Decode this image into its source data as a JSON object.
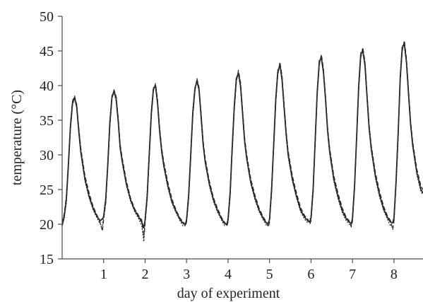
{
  "chart_data": {
    "type": "line",
    "title": "",
    "xlabel": "day of experiment",
    "ylabel": "temperature (°C)",
    "xlim": [
      0,
      8.7
    ],
    "ylim": [
      15,
      50
    ],
    "x_ticks": [
      1,
      2,
      3,
      4,
      5,
      6,
      7,
      8
    ],
    "y_ticks": [
      15,
      20,
      25,
      30,
      35,
      40,
      45,
      50
    ],
    "grid": false,
    "line_color": "#2a2a2a",
    "series": [
      {
        "style": "solid",
        "x": [
          0.0,
          0.05,
          0.1,
          0.15,
          0.2,
          0.25,
          0.3,
          0.35,
          0.4,
          0.45,
          0.55,
          0.65,
          0.75,
          0.85,
          0.92,
          0.97,
          1.0,
          1.05,
          1.1,
          1.15,
          1.2,
          1.25,
          1.3,
          1.35,
          1.4,
          1.45,
          1.55,
          1.65,
          1.75,
          1.85,
          1.92,
          1.97,
          2.0,
          2.05,
          2.1,
          2.15,
          2.2,
          2.25,
          2.3,
          2.35,
          2.4,
          2.45,
          2.55,
          2.65,
          2.75,
          2.85,
          2.92,
          2.97,
          3.0,
          3.05,
          3.1,
          3.15,
          3.2,
          3.25,
          3.3,
          3.35,
          3.4,
          3.45,
          3.55,
          3.65,
          3.75,
          3.85,
          3.92,
          3.97,
          4.0,
          4.05,
          4.1,
          4.15,
          4.2,
          4.25,
          4.3,
          4.35,
          4.4,
          4.45,
          4.55,
          4.65,
          4.75,
          4.85,
          4.92,
          4.97,
          5.0,
          5.05,
          5.1,
          5.15,
          5.2,
          5.25,
          5.3,
          5.35,
          5.4,
          5.45,
          5.55,
          5.65,
          5.75,
          5.85,
          5.92,
          5.97,
          6.0,
          6.05,
          6.1,
          6.15,
          6.2,
          6.25,
          6.3,
          6.35,
          6.4,
          6.45,
          6.55,
          6.65,
          6.75,
          6.85,
          6.92,
          6.97,
          7.0,
          7.05,
          7.1,
          7.15,
          7.2,
          7.25,
          7.3,
          7.35,
          7.4,
          7.45,
          7.55,
          7.65,
          7.75,
          7.85,
          7.92,
          7.97,
          8.0,
          8.05,
          8.1,
          8.15,
          8.2,
          8.25,
          8.3,
          8.35,
          8.4,
          8.45,
          8.55,
          8.65,
          8.7
        ],
        "y": [
          19.8,
          21.0,
          23.5,
          28.5,
          34.0,
          37.5,
          38.3,
          37.0,
          33.5,
          30.5,
          26.5,
          24.0,
          22.2,
          21.0,
          20.5,
          20.8,
          21.0,
          23.5,
          28.5,
          34.5,
          38.3,
          39.2,
          38.2,
          35.0,
          31.0,
          29.0,
          25.8,
          23.5,
          22.0,
          21.0,
          20.3,
          19.5,
          20.6,
          24.0,
          30.0,
          36.0,
          39.5,
          40.0,
          37.5,
          33.5,
          30.5,
          28.5,
          25.5,
          23.2,
          21.8,
          20.6,
          20.1,
          20.0,
          20.6,
          24.0,
          30.0,
          36.0,
          39.5,
          40.7,
          39.5,
          35.5,
          31.5,
          29.0,
          25.8,
          23.5,
          21.9,
          20.7,
          20.1,
          20.0,
          20.6,
          24.5,
          31.0,
          37.0,
          41.0,
          41.8,
          40.0,
          36.0,
          32.0,
          29.5,
          26.0,
          23.8,
          22.0,
          20.8,
          20.2,
          20.1,
          20.7,
          25.0,
          31.5,
          38.0,
          42.0,
          43.0,
          41.0,
          37.0,
          33.0,
          30.0,
          26.5,
          24.0,
          22.0,
          21.0,
          20.5,
          20.3,
          20.9,
          25.0,
          32.0,
          39.0,
          43.5,
          44.0,
          42.0,
          38.0,
          33.5,
          30.5,
          26.5,
          24.0,
          22.0,
          20.8,
          20.3,
          20.1,
          20.8,
          25.5,
          32.5,
          40.0,
          44.5,
          45.0,
          43.0,
          38.5,
          34.0,
          31.0,
          27.0,
          24.3,
          22.2,
          20.9,
          20.3,
          20.2,
          20.8,
          26.0,
          33.0,
          41.0,
          45.5,
          46.0,
          43.5,
          39.0,
          34.5,
          31.5,
          27.5,
          25.0,
          24.5
        ]
      },
      {
        "style": "dashed",
        "x": [
          0.0,
          0.05,
          0.1,
          0.15,
          0.2,
          0.25,
          0.3,
          0.35,
          0.4,
          0.45,
          0.55,
          0.65,
          0.75,
          0.85,
          0.92,
          0.97,
          1.0,
          1.05,
          1.1,
          1.15,
          1.2,
          1.25,
          1.3,
          1.35,
          1.4,
          1.45,
          1.55,
          1.65,
          1.75,
          1.85,
          1.92,
          1.97,
          2.0,
          2.05,
          2.1,
          2.15,
          2.2,
          2.25,
          2.3,
          2.35,
          2.4,
          2.45,
          2.55,
          2.65,
          2.75,
          2.85,
          2.92,
          2.97,
          3.0,
          3.05,
          3.1,
          3.15,
          3.2,
          3.25,
          3.3,
          3.35,
          3.4,
          3.45,
          3.55,
          3.65,
          3.75,
          3.85,
          3.92,
          3.97,
          4.0,
          4.05,
          4.1,
          4.15,
          4.2,
          4.25,
          4.3,
          4.35,
          4.4,
          4.45,
          4.55,
          4.65,
          4.75,
          4.85,
          4.92,
          4.97,
          5.0,
          5.05,
          5.1,
          5.15,
          5.2,
          5.25,
          5.3,
          5.35,
          5.4,
          5.45,
          5.55,
          5.65,
          5.75,
          5.85,
          5.92,
          5.97,
          6.0,
          6.05,
          6.1,
          6.15,
          6.2,
          6.25,
          6.3,
          6.35,
          6.4,
          6.45,
          6.55,
          6.65,
          6.75,
          6.85,
          6.92,
          6.97,
          7.0,
          7.05,
          7.1,
          7.15,
          7.2,
          7.25,
          7.3,
          7.35,
          7.4,
          7.45,
          7.55,
          7.65,
          7.75,
          7.85,
          7.92,
          7.97,
          8.0,
          8.05,
          8.1,
          8.15,
          8.2,
          8.25,
          8.3,
          8.35,
          8.4,
          8.45,
          8.55,
          8.65,
          8.7
        ],
        "y": [
          20.2,
          21.5,
          24.0,
          29.0,
          34.5,
          37.8,
          38.5,
          37.3,
          34.0,
          31.0,
          27.0,
          24.5,
          22.5,
          21.2,
          20.2,
          19.0,
          20.6,
          23.0,
          28.0,
          34.0,
          38.0,
          39.4,
          38.5,
          35.5,
          31.5,
          29.5,
          26.2,
          23.8,
          22.2,
          21.2,
          20.6,
          18.0,
          20.2,
          23.5,
          29.5,
          35.5,
          39.2,
          40.3,
          38.0,
          34.0,
          31.0,
          29.0,
          26.0,
          23.6,
          22.0,
          20.8,
          20.4,
          19.7,
          20.3,
          23.5,
          29.5,
          35.5,
          39.2,
          41.0,
          39.8,
          36.0,
          32.0,
          29.5,
          26.2,
          23.8,
          22.2,
          20.9,
          20.3,
          19.7,
          20.3,
          24.0,
          30.5,
          36.5,
          40.5,
          42.2,
          40.5,
          36.5,
          32.5,
          30.0,
          26.5,
          24.2,
          22.3,
          21.0,
          20.4,
          19.6,
          20.3,
          24.5,
          31.0,
          37.5,
          41.5,
          43.4,
          41.5,
          37.5,
          33.5,
          30.5,
          27.0,
          24.5,
          22.4,
          21.2,
          20.8,
          20.0,
          20.5,
          24.5,
          31.5,
          38.5,
          43.0,
          44.5,
          42.5,
          38.5,
          34.0,
          31.0,
          27.0,
          24.5,
          22.4,
          21.0,
          20.5,
          19.6,
          20.4,
          25.0,
          32.0,
          39.5,
          44.0,
          45.5,
          43.5,
          39.0,
          34.5,
          31.5,
          27.5,
          24.8,
          22.6,
          21.1,
          20.5,
          19.2,
          20.4,
          25.5,
          32.5,
          40.5,
          45.0,
          46.5,
          44.0,
          39.5,
          35.0,
          32.0,
          28.0,
          25.5,
          25.0
        ]
      },
      {
        "style": "dotted",
        "x": [
          0.0,
          0.05,
          0.1,
          0.15,
          0.2,
          0.25,
          0.3,
          0.35,
          0.4,
          0.45,
          0.55,
          0.65,
          0.75,
          0.85,
          0.92,
          0.97,
          1.0,
          1.05,
          1.1,
          1.15,
          1.2,
          1.25,
          1.3,
          1.35,
          1.4,
          1.45,
          1.55,
          1.65,
          1.75,
          1.85,
          1.92,
          1.97,
          2.0,
          2.05,
          2.1,
          2.15,
          2.2,
          2.25,
          2.3,
          2.35,
          2.4,
          2.45,
          2.55,
          2.65,
          2.75,
          2.85,
          2.92,
          2.97,
          3.0,
          3.05,
          3.1,
          3.15,
          3.2,
          3.25,
          3.3,
          3.35,
          3.4,
          3.45,
          3.55,
          3.65,
          3.75,
          3.85,
          3.92,
          3.97,
          4.0,
          4.05,
          4.1,
          4.15,
          4.2,
          4.25,
          4.3,
          4.35,
          4.4,
          4.45,
          4.55,
          4.65,
          4.75,
          4.85,
          4.92,
          4.97,
          5.0,
          5.05,
          5.1,
          5.15,
          5.2,
          5.25,
          5.3,
          5.35,
          5.4,
          5.45,
          5.55,
          5.65,
          5.75,
          5.85,
          5.92,
          5.97,
          6.0,
          6.05,
          6.1,
          6.15,
          6.2,
          6.25,
          6.3,
          6.35,
          6.4,
          6.45,
          6.55,
          6.65,
          6.75,
          6.85,
          6.92,
          6.97,
          7.0,
          7.05,
          7.1,
          7.15,
          7.2,
          7.25,
          7.3,
          7.35,
          7.4,
          7.45,
          7.55,
          7.65,
          7.75,
          7.85,
          7.92,
          7.97,
          8.0,
          8.05,
          8.1,
          8.15,
          8.2,
          8.25,
          8.3,
          8.35,
          8.4,
          8.45,
          8.55,
          8.65,
          8.7
        ],
        "y": [
          20.5,
          21.2,
          23.0,
          28.0,
          33.5,
          37.2,
          38.1,
          36.8,
          33.2,
          30.2,
          26.2,
          23.8,
          22.0,
          20.8,
          20.0,
          19.8,
          21.3,
          24.0,
          29.0,
          35.0,
          38.6,
          39.0,
          37.8,
          34.8,
          30.8,
          28.8,
          25.5,
          23.3,
          21.8,
          20.7,
          19.8,
          17.5,
          21.0,
          24.5,
          30.5,
          36.5,
          39.7,
          39.8,
          37.2,
          33.2,
          30.2,
          28.2,
          25.2,
          23.0,
          21.6,
          20.4,
          19.7,
          19.8,
          21.0,
          24.5,
          30.5,
          36.5,
          39.8,
          40.5,
          39.2,
          35.2,
          31.2,
          28.8,
          25.5,
          23.2,
          21.7,
          20.5,
          19.8,
          19.9,
          21.0,
          25.0,
          31.5,
          37.5,
          41.2,
          41.6,
          39.7,
          35.7,
          31.7,
          29.2,
          25.8,
          23.5,
          21.8,
          20.6,
          19.9,
          19.8,
          21.0,
          25.5,
          32.0,
          38.5,
          42.3,
          42.8,
          40.7,
          36.7,
          32.7,
          29.7,
          26.2,
          23.8,
          21.8,
          20.7,
          20.2,
          20.6,
          21.2,
          25.5,
          32.5,
          39.5,
          43.8,
          43.8,
          41.7,
          37.7,
          33.2,
          30.2,
          26.2,
          23.7,
          21.7,
          20.5,
          20.0,
          19.8,
          21.1,
          26.0,
          33.0,
          40.5,
          44.8,
          44.8,
          42.7,
          38.2,
          33.7,
          30.7,
          26.7,
          24.0,
          22.0,
          20.6,
          19.7,
          20.3,
          21.1,
          26.5,
          33.5,
          41.5,
          45.8,
          45.7,
          43.2,
          38.7,
          34.2,
          31.2,
          27.2,
          24.7,
          24.2
        ]
      }
    ]
  }
}
